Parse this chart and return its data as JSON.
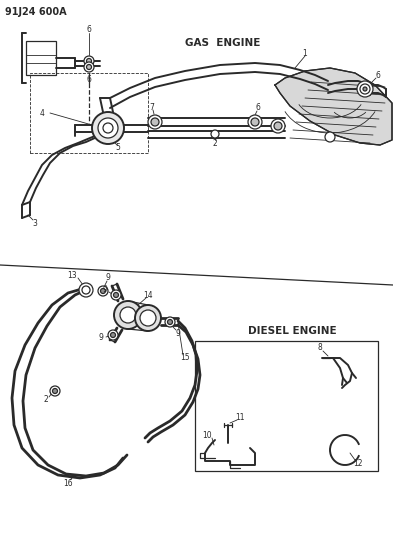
{
  "bg_color": "#ffffff",
  "line_color": "#2a2a2a",
  "code_text": "91J24 600A",
  "gas_engine_label": "GAS  ENGINE",
  "diesel_engine_label": "DIESEL ENGINE",
  "fig_width": 3.93,
  "fig_height": 5.33,
  "dpi": 100,
  "lw_thick": 2.0,
  "lw_med": 1.4,
  "lw_thin": 0.9,
  "lw_hair": 0.6,
  "fs_label": 5.5,
  "fs_code": 7.0,
  "fs_section": 7.5
}
